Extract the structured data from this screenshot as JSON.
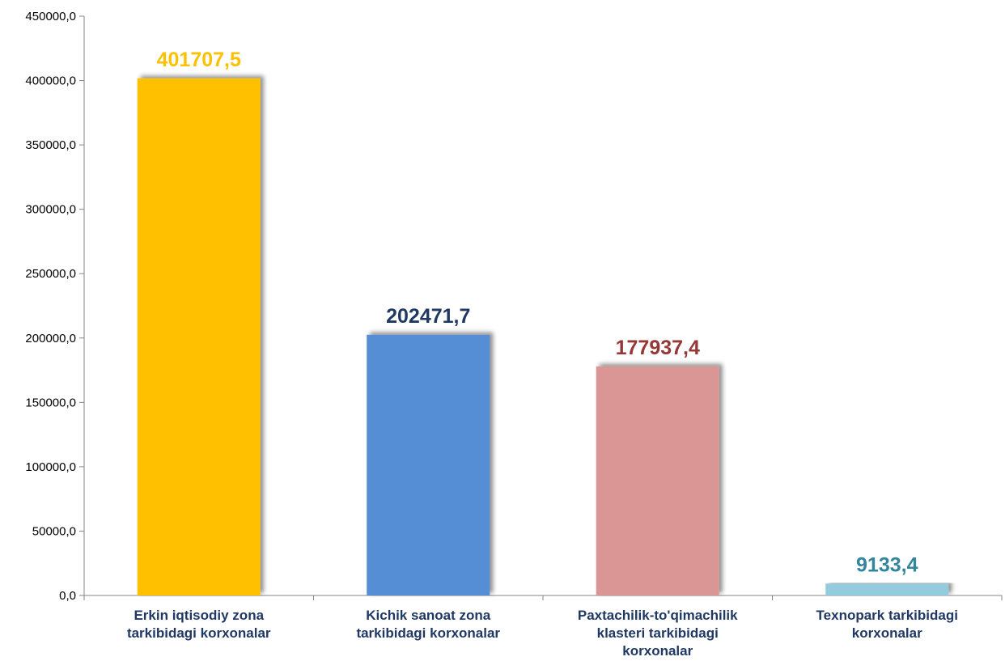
{
  "chart_data": {
    "type": "bar",
    "categories": [
      "Erkin iqtisodiy zona tarkibidagi korxonalar",
      "Kichik sanoat zona tarkibidagi korxonalar",
      "Paxtachilik-to'qimachilik klasteri tarkibidagi korxonalar",
      "Texnopark tarkibidagi korxonalar"
    ],
    "category_lines": [
      [
        "Erkin iqtisodiy zona",
        "tarkibidagi korxonalar"
      ],
      [
        "Kichik sanoat zona",
        "tarkibidagi korxonalar"
      ],
      [
        "Paxtachilik-to'qimachilik",
        "klasteri tarkibidagi",
        "korxonalar"
      ],
      [
        "Texnopark tarkibidagi",
        "korxonalar"
      ]
    ],
    "values": [
      401707.5,
      202471.7,
      177937.4,
      9133.4
    ],
    "value_labels": [
      "401707,5",
      "202471,7",
      "177937,4",
      "9133,4"
    ],
    "bar_colors": [
      "#ffc000",
      "#558ed5",
      "#d99694",
      "#93cddd"
    ],
    "label_colors": [
      "#ffc000",
      "#1f3864",
      "#953735",
      "#31859c"
    ],
    "y_ticks": [
      0,
      50000,
      100000,
      150000,
      200000,
      250000,
      300000,
      350000,
      400000,
      450000
    ],
    "y_tick_labels": [
      "0,0",
      "50000,0",
      "100000,0",
      "150000,0",
      "200000,0",
      "250000,0",
      "300000,0",
      "350000,0",
      "400000,0",
      "450000,0"
    ],
    "ylim": [
      0,
      450000
    ],
    "grid": false,
    "legend": "none",
    "title": "",
    "xlabel": "",
    "ylabel": ""
  }
}
